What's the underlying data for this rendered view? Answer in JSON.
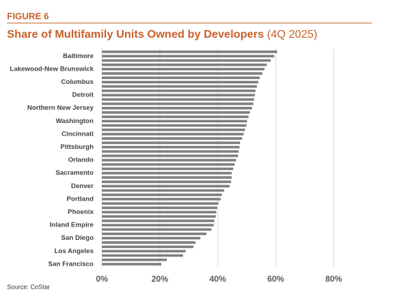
{
  "chart_data": {
    "type": "bar",
    "orientation": "horizontal",
    "figure_label": "FIGURE 6",
    "title": "Share of Multifamily Units Owned by Developers",
    "title_note": "(4Q 2025)",
    "source": "Source: CoStar",
    "color": "#7f7f7f",
    "categories": [
      null,
      "Baltimore",
      null,
      null,
      "Lakewood-New Brunswick",
      null,
      null,
      "Columbus",
      null,
      null,
      "Detroit",
      null,
      null,
      "Northern New Jersey",
      null,
      null,
      "Washington",
      null,
      null,
      "Cincinnati",
      null,
      null,
      "Pittsburgh",
      null,
      null,
      "Orlando",
      null,
      null,
      "Sacramento",
      null,
      null,
      "Denver",
      null,
      null,
      "Portland",
      null,
      null,
      "Phoenix",
      null,
      null,
      "Inland Empire",
      null,
      null,
      "San Diego",
      null,
      null,
      "Los Angeles",
      null,
      null,
      "San Francisco"
    ],
    "values": [
      60.5,
      59.5,
      58.3,
      56.9,
      56.1,
      55.4,
      54.5,
      54.0,
      53.5,
      53.0,
      52.8,
      52.5,
      52.3,
      51.8,
      51.1,
      50.6,
      50.1,
      49.9,
      49.4,
      48.9,
      48.4,
      47.7,
      47.5,
      47.2,
      47.0,
      46.3,
      45.8,
      45.3,
      44.8,
      44.8,
      44.6,
      44.1,
      42.2,
      41.4,
      41.0,
      40.2,
      39.8,
      39.5,
      39.3,
      38.8,
      38.6,
      37.8,
      36.1,
      34.0,
      32.3,
      31.6,
      28.9,
      28.0,
      22.4,
      20.5
    ],
    "xlim": [
      0,
      80
    ],
    "xticks": [
      {
        "value": 0,
        "label": "0%"
      },
      {
        "value": 20,
        "label": "20%"
      },
      {
        "value": 40,
        "label": "40%"
      },
      {
        "value": 60,
        "label": "60%"
      },
      {
        "value": 80,
        "label": "80%"
      }
    ],
    "grid": true
  }
}
